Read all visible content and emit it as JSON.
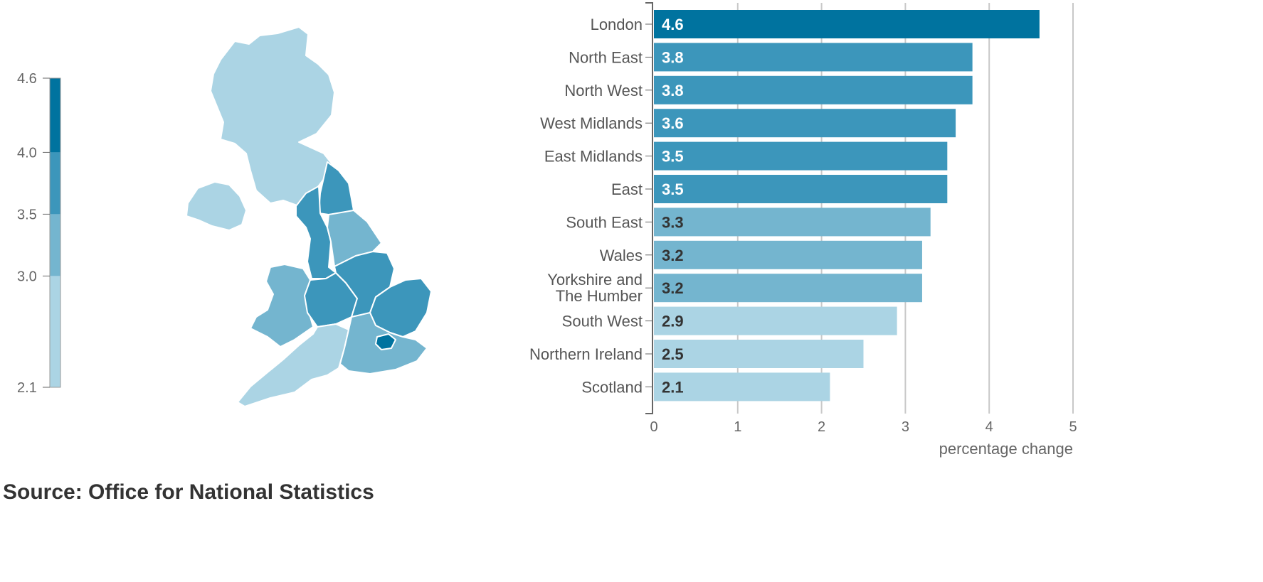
{
  "chart_data": [
    {
      "type": "map",
      "legend_ticks": [
        4.6,
        4.0,
        3.5,
        3.0,
        2.1
      ],
      "legend_bins": [
        {
          "from": 2.1,
          "to": 3.0,
          "color": "#abd4e4"
        },
        {
          "from": 3.0,
          "to": 3.5,
          "color": "#74b5cf"
        },
        {
          "from": 3.5,
          "to": 4.0,
          "color": "#3c96bb"
        },
        {
          "from": 4.0,
          "to": 4.6,
          "color": "#00739f"
        }
      ]
    },
    {
      "type": "bar",
      "orientation": "horizontal",
      "categories": [
        "London",
        "North East",
        "North West",
        "West Midlands",
        "East Midlands",
        "East",
        "South East",
        "Wales",
        "Yorkshire and The Humber",
        "South West",
        "Northern Ireland",
        "Scotland"
      ],
      "values": [
        4.6,
        3.8,
        3.8,
        3.6,
        3.5,
        3.5,
        3.3,
        3.2,
        3.2,
        2.9,
        2.5,
        2.1
      ],
      "xlabel": "percentage change",
      "xlim": [
        0,
        5
      ],
      "xticks": [
        0,
        1,
        2,
        3,
        4,
        5
      ],
      "grid": true
    }
  ],
  "source": "Source: Office for National Statistics"
}
